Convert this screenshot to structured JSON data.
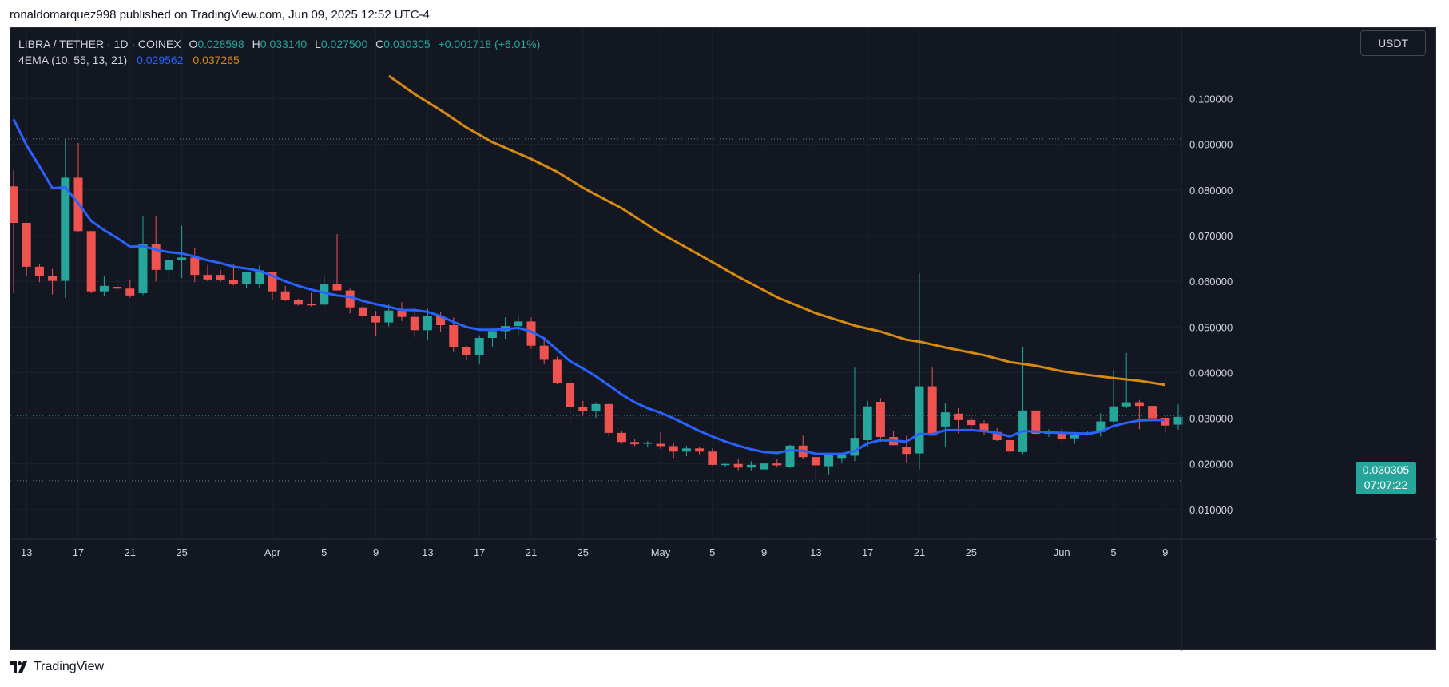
{
  "caption": "ronaldomarquez998 published on TradingView.com, Jun 09, 2025 12:52 UTC-4",
  "legend": {
    "symbol": "LIBRA / TETHER · 1D · COINEX",
    "o_label": "O",
    "o_value": "0.028598",
    "h_label": "H",
    "h_value": "0.033140",
    "l_label": "L",
    "l_value": "0.027500",
    "c_label": "C",
    "c_value": "0.030305",
    "change": "+0.001718 (+6.01%)",
    "indicator": "4EMA (10, 55, 13, 21)",
    "ema10_value": "0.029562",
    "ema55_value": "0.037265"
  },
  "currency_button": "USDT",
  "price_tag": {
    "price": "0.030305",
    "countdown": "07:07:22"
  },
  "footer": {
    "brand": "TradingView",
    "icon": "tradingview-logo-icon"
  },
  "colors": {
    "up": "#26a69a",
    "down": "#ef5350",
    "ema_fast": "#2962ff",
    "ema_slow": "#d68a10",
    "background": "#131722",
    "grid": "#1e222d",
    "text": "#d1d4dc"
  },
  "chart_data": {
    "type": "candlestick",
    "ylim": [
      0.0035,
      0.1155
    ],
    "y_ticks": [
      "0.010000",
      "0.020000",
      "0.030000",
      "0.040000",
      "0.050000",
      "0.060000",
      "0.070000",
      "0.080000",
      "0.090000",
      "0.100000"
    ],
    "x_ticks": [
      {
        "i": 1,
        "label": "13"
      },
      {
        "i": 5,
        "label": "17"
      },
      {
        "i": 9,
        "label": "21"
      },
      {
        "i": 13,
        "label": "25"
      },
      {
        "i": 20,
        "label": "Apr"
      },
      {
        "i": 24,
        "label": "5"
      },
      {
        "i": 28,
        "label": "9"
      },
      {
        "i": 32,
        "label": "13"
      },
      {
        "i": 36,
        "label": "17"
      },
      {
        "i": 40,
        "label": "21"
      },
      {
        "i": 44,
        "label": "25"
      },
      {
        "i": 50,
        "label": "May"
      },
      {
        "i": 54,
        "label": "5"
      },
      {
        "i": 58,
        "label": "9"
      },
      {
        "i": 62,
        "label": "13"
      },
      {
        "i": 66,
        "label": "17"
      },
      {
        "i": 70,
        "label": "21"
      },
      {
        "i": 74,
        "label": "25"
      },
      {
        "i": 81,
        "label": "Jun"
      },
      {
        "i": 85,
        "label": "5"
      },
      {
        "i": 89,
        "label": "9"
      }
    ],
    "x_count": 90,
    "dotted_levels": [
      0.0912,
      0.0306,
      0.0163
    ],
    "candles": [
      [
        0.0808,
        0.0843,
        0.0574,
        0.0728
      ],
      [
        0.0728,
        0.0728,
        0.0611,
        0.0632
      ],
      [
        0.0632,
        0.0639,
        0.0598,
        0.0611
      ],
      [
        0.0611,
        0.0627,
        0.0571,
        0.0601
      ],
      [
        0.0601,
        0.0911,
        0.0564,
        0.0827
      ],
      [
        0.0827,
        0.0903,
        0.0708,
        0.071
      ],
      [
        0.071,
        0.071,
        0.0574,
        0.0578
      ],
      [
        0.0578,
        0.0612,
        0.0567,
        0.059
      ],
      [
        0.0588,
        0.0606,
        0.0577,
        0.0584
      ],
      [
        0.0584,
        0.0602,
        0.0564,
        0.0569
      ],
      [
        0.0574,
        0.0743,
        0.057,
        0.0681
      ],
      [
        0.0681,
        0.0743,
        0.06,
        0.0625
      ],
      [
        0.0625,
        0.0658,
        0.0603,
        0.0646
      ],
      [
        0.0646,
        0.0722,
        0.0607,
        0.0652
      ],
      [
        0.0652,
        0.0672,
        0.0598,
        0.0614
      ],
      [
        0.0614,
        0.0636,
        0.06,
        0.0604
      ],
      [
        0.0614,
        0.0625,
        0.0599,
        0.0603
      ],
      [
        0.0603,
        0.0637,
        0.0591,
        0.0595
      ],
      [
        0.0595,
        0.0611,
        0.0585,
        0.062
      ],
      [
        0.0594,
        0.0635,
        0.0586,
        0.0624
      ],
      [
        0.062,
        0.062,
        0.056,
        0.0578
      ],
      [
        0.0578,
        0.059,
        0.0557,
        0.0559
      ],
      [
        0.056,
        0.0562,
        0.0547,
        0.0549
      ],
      [
        0.055,
        0.0575,
        0.0545,
        0.0549
      ],
      [
        0.0549,
        0.061,
        0.0546,
        0.0595
      ],
      [
        0.0595,
        0.0703,
        0.058,
        0.058
      ],
      [
        0.058,
        0.0584,
        0.053,
        0.0543
      ],
      [
        0.0543,
        0.0565,
        0.0515,
        0.0524
      ],
      [
        0.0524,
        0.0535,
        0.0481,
        0.051
      ],
      [
        0.051,
        0.0549,
        0.0501,
        0.0536
      ],
      [
        0.0536,
        0.0554,
        0.0513,
        0.0522
      ],
      [
        0.0522,
        0.0543,
        0.0478,
        0.0493
      ],
      [
        0.0493,
        0.054,
        0.0471,
        0.0524
      ],
      [
        0.0524,
        0.0532,
        0.0489,
        0.0504
      ],
      [
        0.0504,
        0.0521,
        0.0445,
        0.0455
      ],
      [
        0.0455,
        0.0459,
        0.0427,
        0.0438
      ],
      [
        0.0438,
        0.0482,
        0.0418,
        0.0476
      ],
      [
        0.0476,
        0.0498,
        0.0457,
        0.0491
      ],
      [
        0.0491,
        0.0521,
        0.0474,
        0.0502
      ],
      [
        0.0502,
        0.0526,
        0.0482,
        0.0512
      ],
      [
        0.0512,
        0.0521,
        0.0452,
        0.0459
      ],
      [
        0.0459,
        0.0472,
        0.0418,
        0.0428
      ],
      [
        0.0428,
        0.0435,
        0.0374,
        0.0378
      ],
      [
        0.0378,
        0.0385,
        0.0283,
        0.0325
      ],
      [
        0.0325,
        0.0338,
        0.0306,
        0.0315
      ],
      [
        0.0315,
        0.0335,
        0.0301,
        0.0331
      ],
      [
        0.0331,
        0.0333,
        0.026,
        0.0268
      ],
      [
        0.0268,
        0.0272,
        0.0244,
        0.0248
      ],
      [
        0.0248,
        0.0255,
        0.0239,
        0.0243
      ],
      [
        0.0244,
        0.025,
        0.0236,
        0.0247
      ],
      [
        0.0244,
        0.027,
        0.0233,
        0.0239
      ],
      [
        0.0239,
        0.0245,
        0.0213,
        0.0227
      ],
      [
        0.0227,
        0.024,
        0.0217,
        0.0234
      ],
      [
        0.0234,
        0.0238,
        0.0221,
        0.0227
      ],
      [
        0.0227,
        0.0234,
        0.0197,
        0.0198
      ],
      [
        0.0198,
        0.0203,
        0.0194,
        0.02
      ],
      [
        0.02,
        0.0212,
        0.0186,
        0.0192
      ],
      [
        0.0192,
        0.0206,
        0.0186,
        0.0198
      ],
      [
        0.0188,
        0.0203,
        0.0186,
        0.0201
      ],
      [
        0.0201,
        0.021,
        0.0192,
        0.0197
      ],
      [
        0.0194,
        0.0242,
        0.0191,
        0.024
      ],
      [
        0.024,
        0.0262,
        0.021,
        0.0215
      ],
      [
        0.0215,
        0.0229,
        0.0159,
        0.0197
      ],
      [
        0.0195,
        0.022,
        0.0177,
        0.0219
      ],
      [
        0.0213,
        0.0224,
        0.0201,
        0.022
      ],
      [
        0.0218,
        0.0411,
        0.0206,
        0.0257
      ],
      [
        0.0252,
        0.0338,
        0.0237,
        0.0326
      ],
      [
        0.0336,
        0.0344,
        0.0248,
        0.0259
      ],
      [
        0.0259,
        0.0272,
        0.0242,
        0.0241
      ],
      [
        0.0237,
        0.0262,
        0.0203,
        0.0222
      ],
      [
        0.0223,
        0.0618,
        0.0188,
        0.037
      ],
      [
        0.037,
        0.0411,
        0.0262,
        0.0262
      ],
      [
        0.0282,
        0.0333,
        0.0238,
        0.0313
      ],
      [
        0.031,
        0.0322,
        0.0267,
        0.0296
      ],
      [
        0.0296,
        0.0302,
        0.0277,
        0.0285
      ],
      [
        0.0288,
        0.0295,
        0.0263,
        0.027
      ],
      [
        0.027,
        0.0278,
        0.025,
        0.0252
      ],
      [
        0.0252,
        0.026,
        0.0222,
        0.0227
      ],
      [
        0.0226,
        0.0457,
        0.0222,
        0.0317
      ],
      [
        0.0317,
        0.0317,
        0.0265,
        0.0266
      ],
      [
        0.0266,
        0.0276,
        0.0259,
        0.027
      ],
      [
        0.027,
        0.0277,
        0.025,
        0.0255
      ],
      [
        0.0256,
        0.0267,
        0.0244,
        0.0264
      ],
      [
        0.0264,
        0.0271,
        0.0262,
        0.0269
      ],
      [
        0.027,
        0.0311,
        0.026,
        0.0293
      ],
      [
        0.0293,
        0.0406,
        0.0289,
        0.0326
      ],
      [
        0.0326,
        0.0443,
        0.0322,
        0.0335
      ],
      [
        0.0335,
        0.034,
        0.0276,
        0.0327
      ],
      [
        0.0327,
        0.0327,
        0.03,
        0.03
      ],
      [
        0.0301,
        0.0304,
        0.0268,
        0.0284
      ],
      [
        0.0286,
        0.0331,
        0.0275,
        0.0303
      ]
    ],
    "ema_fast": [
      [
        0,
        0.0955
      ],
      [
        1,
        0.0898
      ],
      [
        2,
        0.0852
      ],
      [
        3,
        0.0804
      ],
      [
        4,
        0.0806
      ],
      [
        5,
        0.0771
      ],
      [
        6,
        0.0732
      ],
      [
        7,
        0.0712
      ],
      [
        8,
        0.0695
      ],
      [
        9,
        0.0676
      ],
      [
        10,
        0.0677
      ],
      [
        11,
        0.0669
      ],
      [
        12,
        0.0664
      ],
      [
        13,
        0.0661
      ],
      [
        14,
        0.0654
      ],
      [
        15,
        0.0646
      ],
      [
        16,
        0.064
      ],
      [
        17,
        0.0632
      ],
      [
        18,
        0.0628
      ],
      [
        19,
        0.0623
      ],
      [
        20,
        0.0612
      ],
      [
        21,
        0.06
      ],
      [
        22,
        0.059
      ],
      [
        23,
        0.0582
      ],
      [
        24,
        0.0575
      ],
      [
        25,
        0.0569
      ],
      [
        26,
        0.0566
      ],
      [
        27,
        0.0557
      ],
      [
        28,
        0.055
      ],
      [
        29,
        0.0544
      ],
      [
        30,
        0.0537
      ],
      [
        31,
        0.0537
      ],
      [
        32,
        0.0533
      ],
      [
        33,
        0.0524
      ],
      [
        34,
        0.0511
      ],
      [
        35,
        0.05
      ],
      [
        36,
        0.0494
      ],
      [
        37,
        0.0494
      ],
      [
        38,
        0.0495
      ],
      [
        39,
        0.0498
      ],
      [
        40,
        0.049
      ],
      [
        41,
        0.0475
      ],
      [
        42,
        0.045
      ],
      [
        43,
        0.0425
      ],
      [
        44,
        0.0409
      ],
      [
        45,
        0.0392
      ],
      [
        46,
        0.0372
      ],
      [
        47,
        0.0352
      ],
      [
        48,
        0.0335
      ],
      [
        49,
        0.0322
      ],
      [
        50,
        0.0312
      ],
      [
        51,
        0.03
      ],
      [
        52,
        0.0286
      ],
      [
        53,
        0.0272
      ],
      [
        54,
        0.026
      ],
      [
        55,
        0.0249
      ],
      [
        56,
        0.024
      ],
      [
        57,
        0.0232
      ],
      [
        58,
        0.0226
      ],
      [
        59,
        0.0224
      ],
      [
        60,
        0.023
      ],
      [
        61,
        0.0229
      ],
      [
        62,
        0.0222
      ],
      [
        63,
        0.0222
      ],
      [
        64,
        0.0222
      ],
      [
        65,
        0.0228
      ],
      [
        66,
        0.0245
      ],
      [
        67,
        0.0252
      ],
      [
        68,
        0.0251
      ],
      [
        69,
        0.0249
      ],
      [
        70,
        0.0266
      ],
      [
        71,
        0.0265
      ],
      [
        72,
        0.0274
      ],
      [
        73,
        0.0274
      ],
      [
        74,
        0.0274
      ],
      [
        75,
        0.0272
      ],
      [
        76,
        0.0268
      ],
      [
        77,
        0.026
      ],
      [
        78,
        0.0272
      ],
      [
        79,
        0.0271
      ],
      [
        80,
        0.0269
      ],
      [
        81,
        0.0268
      ],
      [
        82,
        0.0267
      ],
      [
        83,
        0.0266
      ],
      [
        84,
        0.0271
      ],
      [
        85,
        0.0283
      ],
      [
        86,
        0.029
      ],
      [
        87,
        0.0295
      ],
      [
        88,
        0.0296
      ],
      [
        89,
        0.0296
      ]
    ],
    "ema_slow": [
      [
        29,
        0.105
      ],
      [
        31,
        0.101
      ],
      [
        33,
        0.0975
      ],
      [
        35,
        0.0937
      ],
      [
        37,
        0.0905
      ],
      [
        40,
        0.0868
      ],
      [
        42,
        0.084
      ],
      [
        44,
        0.0805
      ],
      [
        47,
        0.076
      ],
      [
        50,
        0.0705
      ],
      [
        53,
        0.0658
      ],
      [
        56,
        0.061
      ],
      [
        59,
        0.0565
      ],
      [
        62,
        0.053
      ],
      [
        65,
        0.0503
      ],
      [
        67,
        0.049
      ],
      [
        69,
        0.0472
      ],
      [
        70,
        0.0468
      ],
      [
        72,
        0.0455
      ],
      [
        75,
        0.0438
      ],
      [
        77,
        0.0423
      ],
      [
        79,
        0.0415
      ],
      [
        81,
        0.0403
      ],
      [
        83,
        0.0395
      ],
      [
        85,
        0.0388
      ],
      [
        87,
        0.0382
      ],
      [
        89,
        0.0373
      ]
    ]
  }
}
